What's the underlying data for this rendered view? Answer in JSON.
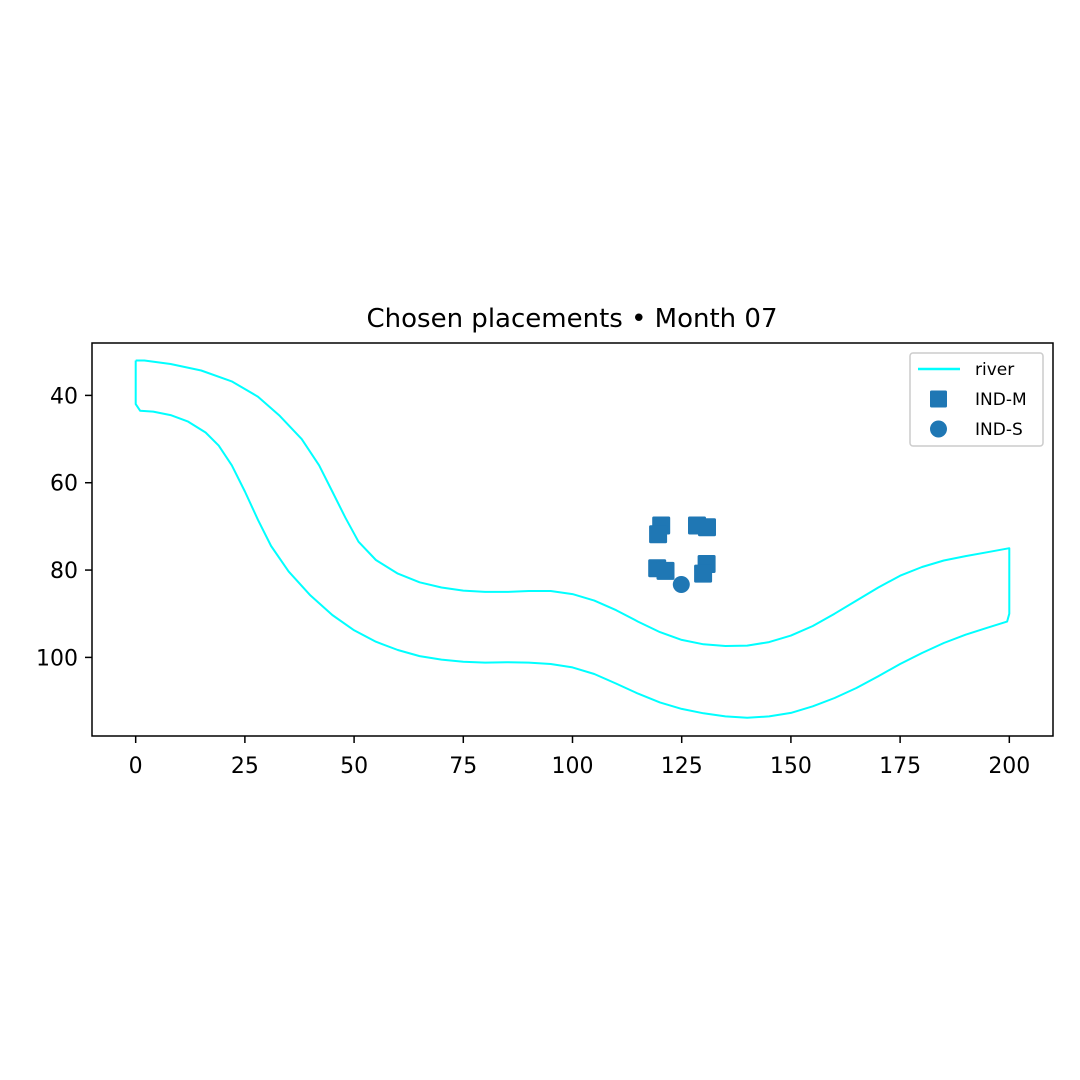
{
  "chart_data": {
    "type": "scatter",
    "title": "Chosen placements • Month 07",
    "xlabel": "",
    "ylabel": "",
    "xlim": [
      -10,
      210
    ],
    "ylim": [
      118,
      28
    ],
    "y_inverted": true,
    "xticks": [
      0,
      25,
      50,
      75,
      100,
      125,
      150,
      175,
      200
    ],
    "yticks": [
      40,
      60,
      80,
      100
    ],
    "grid": false,
    "legend_position": "top-right",
    "legend": [
      {
        "label": "river",
        "marker": "line",
        "color": "#00ffff"
      },
      {
        "label": "IND-M",
        "marker": "square",
        "color": "#1f77b4"
      },
      {
        "label": "IND-S",
        "marker": "circle",
        "color": "#1f77b4"
      }
    ],
    "river": {
      "name": "river",
      "color": "#00ffff",
      "outline": [
        [
          0,
          32
        ],
        [
          2,
          32
        ],
        [
          8,
          32.8
        ],
        [
          15,
          34.3
        ],
        [
          22,
          36.8
        ],
        [
          28,
          40.3
        ],
        [
          33,
          44.7
        ],
        [
          38,
          50
        ],
        [
          42,
          56
        ],
        [
          45,
          62
        ],
        [
          48,
          68
        ],
        [
          51,
          73.5
        ],
        [
          55,
          77.7
        ],
        [
          60,
          80.8
        ],
        [
          65,
          82.8
        ],
        [
          70,
          84
        ],
        [
          75,
          84.7
        ],
        [
          80,
          85
        ],
        [
          85,
          85
        ],
        [
          90,
          84.8
        ],
        [
          95,
          84.8
        ],
        [
          100,
          85.5
        ],
        [
          105,
          87
        ],
        [
          110,
          89.2
        ],
        [
          115,
          91.8
        ],
        [
          120,
          94.2
        ],
        [
          125,
          96
        ],
        [
          130,
          97
        ],
        [
          135,
          97.4
        ],
        [
          140,
          97.3
        ],
        [
          145,
          96.5
        ],
        [
          150,
          95
        ],
        [
          155,
          92.8
        ],
        [
          160,
          90
        ],
        [
          165,
          87
        ],
        [
          170,
          84
        ],
        [
          175,
          81.3
        ],
        [
          180,
          79.3
        ],
        [
          185,
          77.8
        ],
        [
          190,
          76.8
        ],
        [
          195,
          75.9
        ],
        [
          200,
          75
        ],
        [
          200,
          90
        ],
        [
          199.5,
          91.8
        ],
        [
          195,
          93.2
        ],
        [
          190,
          94.8
        ],
        [
          185,
          96.7
        ],
        [
          180,
          99
        ],
        [
          175,
          101.5
        ],
        [
          170,
          104.3
        ],
        [
          165,
          107
        ],
        [
          160,
          109.3
        ],
        [
          155,
          111.2
        ],
        [
          150,
          112.7
        ],
        [
          145,
          113.5
        ],
        [
          140,
          113.8
        ],
        [
          135,
          113.5
        ],
        [
          130,
          112.8
        ],
        [
          125,
          111.8
        ],
        [
          120,
          110.3
        ],
        [
          115,
          108.3
        ],
        [
          110,
          106
        ],
        [
          105,
          103.8
        ],
        [
          100,
          102.3
        ],
        [
          95,
          101.5
        ],
        [
          90,
          101.2
        ],
        [
          85,
          101.1
        ],
        [
          80,
          101.2
        ],
        [
          75,
          101
        ],
        [
          70,
          100.5
        ],
        [
          65,
          99.7
        ],
        [
          60,
          98.3
        ],
        [
          55,
          96.4
        ],
        [
          50,
          93.8
        ],
        [
          45,
          90.3
        ],
        [
          40,
          85.8
        ],
        [
          35,
          80.3
        ],
        [
          31,
          74.5
        ],
        [
          28,
          68.5
        ],
        [
          25,
          62
        ],
        [
          22,
          56
        ],
        [
          19,
          51.5
        ],
        [
          16,
          48.5
        ],
        [
          12,
          46
        ],
        [
          8,
          44.5
        ],
        [
          4,
          43.7
        ],
        [
          1,
          43.5
        ],
        [
          0,
          42
        ],
        [
          0,
          32
        ]
      ]
    },
    "series": [
      {
        "name": "IND-M",
        "marker": "square",
        "color": "#1f77b4",
        "points": [
          [
            120.3,
            69.8
          ],
          [
            119.6,
            71.8
          ],
          [
            128.5,
            69.8
          ],
          [
            130.8,
            70.2
          ],
          [
            119.4,
            79.6
          ],
          [
            121.3,
            80.2
          ],
          [
            130.7,
            78.6
          ],
          [
            129.9,
            80.8
          ]
        ]
      },
      {
        "name": "IND-S",
        "marker": "circle",
        "color": "#1f77b4",
        "points": [
          [
            124.9,
            83.3
          ]
        ]
      }
    ]
  }
}
